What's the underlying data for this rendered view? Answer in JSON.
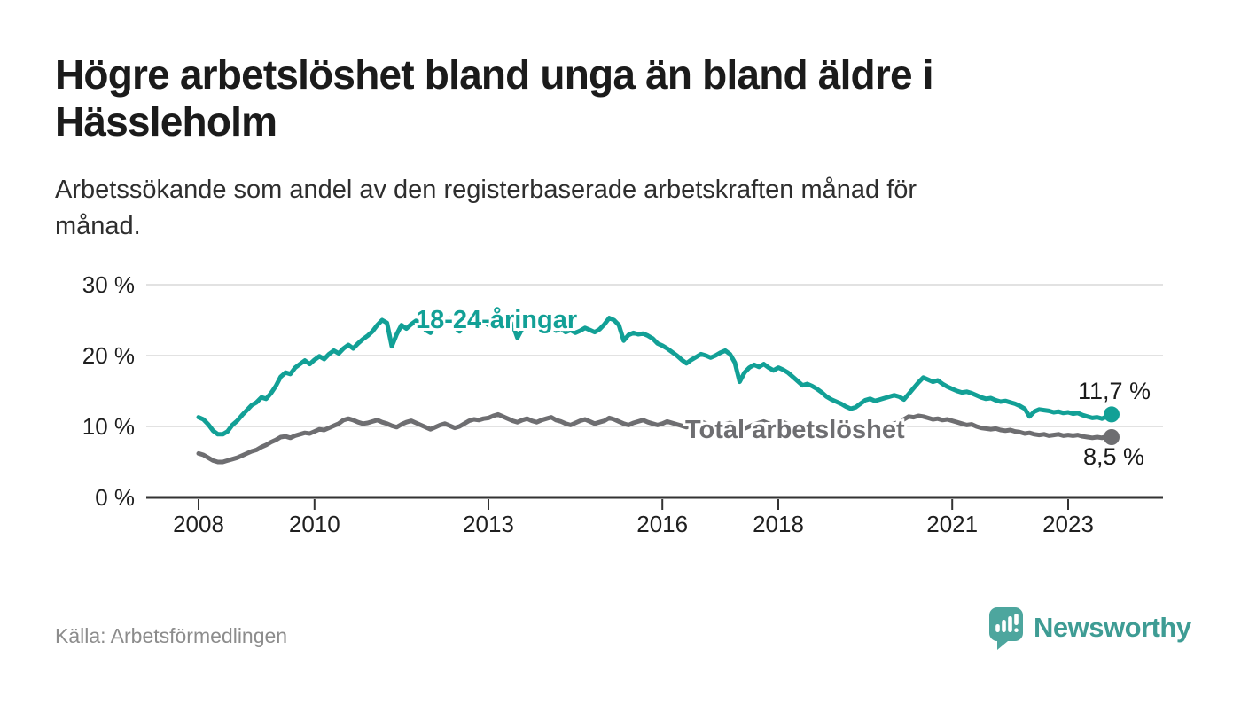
{
  "header": {
    "title_lines": [
      "Högre arbetslöshet bland unga än bland äldre i",
      "Hässleholm"
    ],
    "subtitle_lines": [
      "Arbetssökande som andel av den registerbaserade arbetskraften månad för",
      "månad."
    ]
  },
  "footer": {
    "source": "Källa: Arbetsförmedlingen",
    "brand_name": "Newsworthy"
  },
  "colors": {
    "youth_line": "#12a096",
    "total_line": "#6e6e71",
    "gridline": "#d9d9d9",
    "axis": "#333333",
    "brand_teal": "#4da69e"
  },
  "chart_data": {
    "type": "line",
    "title": "Högre arbetslöshet bland unga än bland äldre i Hässleholm",
    "subtitle": "Arbetssökande som andel av den registerbaserade arbetskraften månad för månad.",
    "x_unit": "month",
    "x_start": "2008-01",
    "x_end": "2023-10",
    "grid": "horizontal",
    "y_axis": {
      "unit": "%",
      "range": [
        0,
        30
      ],
      "ticks": [
        {
          "value": 0,
          "label": "0 %"
        },
        {
          "value": 10,
          "label": "10 %"
        },
        {
          "value": 20,
          "label": "20 %"
        },
        {
          "value": 30,
          "label": "30 %"
        }
      ]
    },
    "x_axis": {
      "ticks": [
        {
          "year": 2008,
          "label": "2008"
        },
        {
          "year": 2010,
          "label": "2010"
        },
        {
          "year": 2013,
          "label": "2013"
        },
        {
          "year": 2016,
          "label": "2016"
        },
        {
          "year": 2018,
          "label": "2018"
        },
        {
          "year": 2021,
          "label": "2021"
        },
        {
          "year": 2023,
          "label": "2023"
        }
      ]
    },
    "series": [
      {
        "id": "youth",
        "label": "18-24-åringar",
        "color": "#12a096",
        "end_value": 11.7,
        "end_value_label": "11,7 %",
        "values": [
          11.3,
          11.0,
          10.3,
          9.4,
          8.9,
          8.9,
          9.3,
          10.2,
          10.8,
          11.6,
          12.3,
          13.0,
          13.4,
          14.1,
          13.9,
          14.7,
          15.7,
          17.0,
          17.6,
          17.4,
          18.3,
          18.8,
          19.3,
          18.8,
          19.4,
          19.9,
          19.5,
          20.2,
          20.7,
          20.3,
          21.0,
          21.5,
          21.0,
          21.7,
          22.3,
          22.8,
          23.4,
          24.3,
          25.0,
          24.6,
          21.3,
          23.0,
          24.3,
          23.8,
          24.4,
          24.9,
          24.5,
          23.6,
          23.2,
          24.6,
          25.3,
          24.7,
          25.2,
          24.0,
          23.4,
          24.6,
          25.4,
          25.0,
          24.6,
          24.9,
          24.3,
          24.7,
          24.4,
          24.9,
          25.1,
          24.4,
          22.5,
          23.8,
          24.4,
          24.1,
          24.3,
          23.9,
          23.6,
          24.0,
          23.5,
          23.8,
          23.3,
          23.6,
          23.2,
          23.5,
          23.9,
          23.6,
          23.3,
          23.7,
          24.4,
          25.3,
          25.0,
          24.3,
          22.1,
          22.9,
          23.2,
          23.0,
          23.1,
          22.8,
          22.4,
          21.7,
          21.4,
          21.0,
          20.5,
          20.0,
          19.4,
          18.9,
          19.4,
          19.8,
          20.2,
          20.0,
          19.7,
          20.0,
          20.4,
          20.7,
          20.2,
          19.0,
          16.3,
          17.6,
          18.3,
          18.7,
          18.4,
          18.8,
          18.3,
          17.9,
          18.3,
          18.0,
          17.6,
          17.0,
          16.4,
          15.8,
          16.0,
          15.7,
          15.3,
          14.8,
          14.2,
          13.8,
          13.5,
          13.2,
          12.8,
          12.5,
          12.7,
          13.2,
          13.7,
          13.9,
          13.6,
          13.8,
          14.0,
          14.2,
          14.4,
          14.2,
          13.8,
          14.6,
          15.4,
          16.2,
          16.9,
          16.6,
          16.3,
          16.5,
          16.0,
          15.6,
          15.3,
          15.0,
          14.8,
          14.9,
          14.7,
          14.4,
          14.1,
          13.9,
          14.0,
          13.7,
          13.5,
          13.6,
          13.4,
          13.2,
          12.9,
          12.5,
          11.4,
          12.1,
          12.4,
          12.3,
          12.2,
          12.0,
          12.1,
          11.9,
          12.0,
          11.8,
          11.9,
          11.6,
          11.4,
          11.2,
          11.3,
          11.1,
          11.4,
          11.7
        ]
      },
      {
        "id": "total",
        "label": "Total arbetslöshet",
        "color": "#6e6e71",
        "end_value": 8.5,
        "end_value_label": "8,5 %",
        "values": [
          6.2,
          6.0,
          5.6,
          5.2,
          5.0,
          5.0,
          5.2,
          5.4,
          5.6,
          5.9,
          6.2,
          6.5,
          6.7,
          7.1,
          7.4,
          7.8,
          8.1,
          8.5,
          8.6,
          8.4,
          8.7,
          8.9,
          9.1,
          9.0,
          9.3,
          9.6,
          9.5,
          9.8,
          10.1,
          10.4,
          10.9,
          11.1,
          10.9,
          10.6,
          10.4,
          10.5,
          10.7,
          10.9,
          10.6,
          10.4,
          10.1,
          9.9,
          10.3,
          10.6,
          10.8,
          10.5,
          10.2,
          9.9,
          9.6,
          9.9,
          10.2,
          10.4,
          10.1,
          9.8,
          10.0,
          10.4,
          10.8,
          11.0,
          10.9,
          11.1,
          11.2,
          11.5,
          11.7,
          11.4,
          11.1,
          10.8,
          10.6,
          10.9,
          11.1,
          10.8,
          10.6,
          10.9,
          11.1,
          11.3,
          10.9,
          10.7,
          10.4,
          10.2,
          10.5,
          10.8,
          11.0,
          10.7,
          10.4,
          10.6,
          10.8,
          11.2,
          11.0,
          10.7,
          10.4,
          10.2,
          10.5,
          10.7,
          10.9,
          10.6,
          10.4,
          10.2,
          10.4,
          10.7,
          10.5,
          10.3,
          10.1,
          9.9,
          10.2,
          10.5,
          10.7,
          10.4,
          10.1,
          9.8,
          10.0,
          10.3,
          10.5,
          10.2,
          9.9,
          9.7,
          10.0,
          10.3,
          10.5,
          10.7,
          10.4,
          10.2,
          10.4,
          10.6,
          10.3,
          10.1,
          9.8,
          9.6,
          9.9,
          10.1,
          10.3,
          10.0,
          9.8,
          9.6,
          9.8,
          10.0,
          10.2,
          10.0,
          9.8,
          9.7,
          9.9,
          10.1,
          10.3,
          10.1,
          10.0,
          10.2,
          10.4,
          10.6,
          11.0,
          11.4,
          11.3,
          11.5,
          11.4,
          11.2,
          11.0,
          11.1,
          10.9,
          11.0,
          10.8,
          10.6,
          10.4,
          10.2,
          10.3,
          10.0,
          9.8,
          9.7,
          9.6,
          9.7,
          9.5,
          9.4,
          9.5,
          9.3,
          9.2,
          9.0,
          9.1,
          8.9,
          8.8,
          8.9,
          8.7,
          8.8,
          8.9,
          8.7,
          8.8,
          8.7,
          8.8,
          8.6,
          8.5,
          8.4,
          8.5,
          8.4,
          8.6,
          8.5
        ]
      }
    ]
  }
}
